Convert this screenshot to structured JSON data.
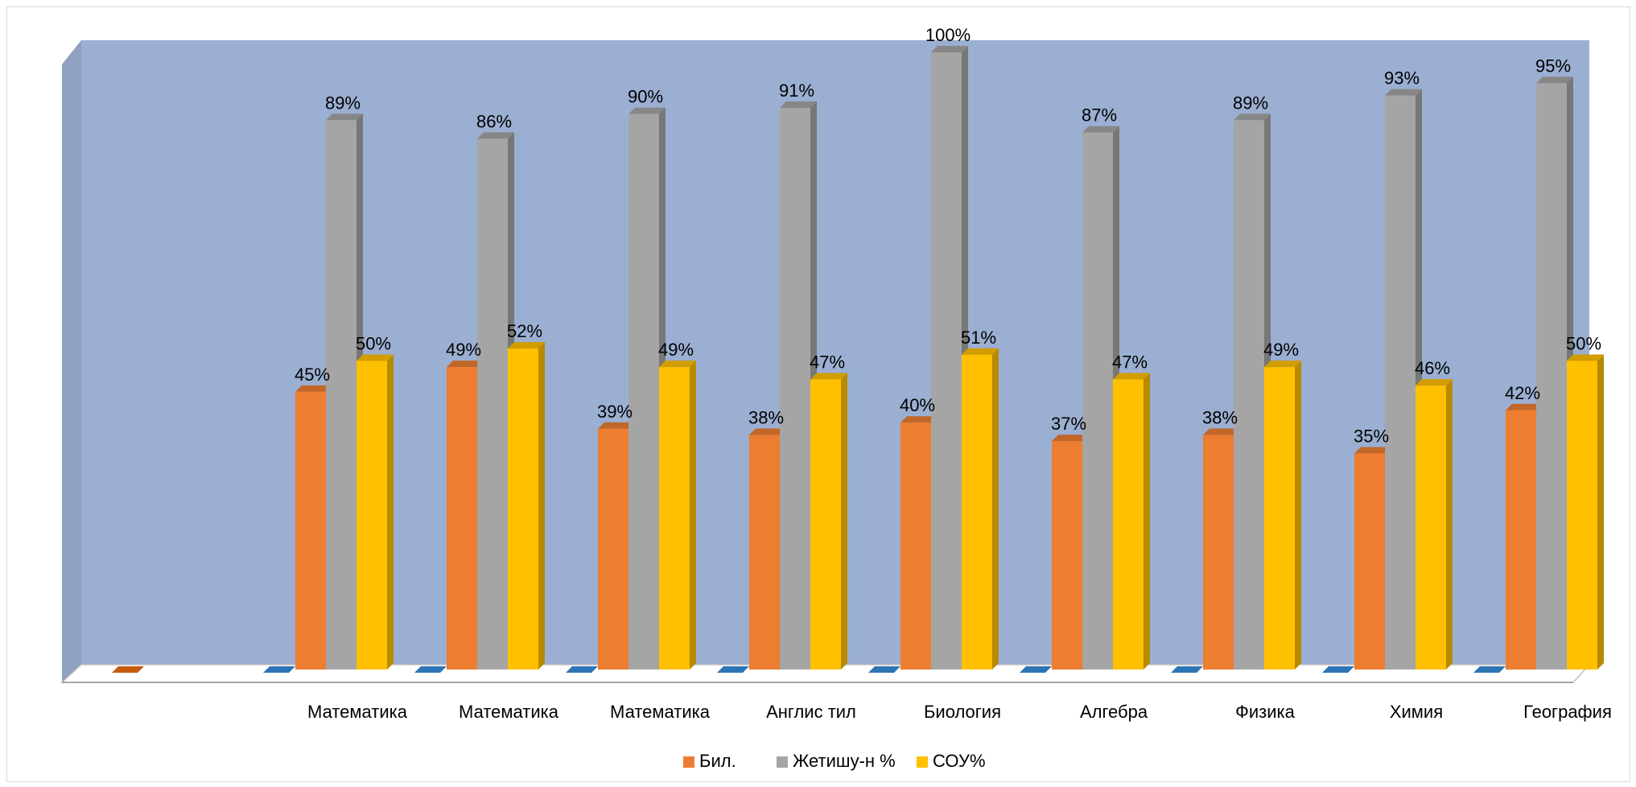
{
  "chart_data": {
    "type": "bar",
    "categories": [
      "",
      "Математика",
      "Математика",
      "Математика",
      "Англис тил",
      "Биология",
      "Алгебра",
      "Физика",
      "Химия",
      "География"
    ],
    "series": [
      {
        "name": "Бил.",
        "color": "#ED7D31",
        "values": [
          0,
          45,
          49,
          39,
          38,
          40,
          37,
          38,
          35,
          42
        ]
      },
      {
        "name": "Жетишу-н %",
        "color": "#A5A5A5",
        "values": [
          null,
          89,
          86,
          90,
          91,
          100,
          87,
          89,
          93,
          95
        ]
      },
      {
        "name": "СОУ%",
        "color": "#FFC000",
        "values": [
          null,
          50,
          52,
          49,
          47,
          51,
          47,
          49,
          46,
          50
        ]
      }
    ],
    "data_labels": [
      [
        null,
        "45%",
        "49%",
        "39%",
        "38%",
        "40%",
        "37%",
        "38%",
        "35%",
        "42%"
      ],
      [
        null,
        "89%",
        "86%",
        "90%",
        "91%",
        "100%",
        "87%",
        "89%",
        "93%",
        "95%"
      ],
      [
        null,
        "50%",
        "52%",
        "49%",
        "47%",
        "51%",
        "47%",
        "49%",
        "46%",
        "50%"
      ]
    ],
    "ylim": [
      0,
      100
    ],
    "grid": false,
    "legend": "bottom",
    "wall_color": "#9BAFD2",
    "extra_series_color": "#4472C4"
  }
}
